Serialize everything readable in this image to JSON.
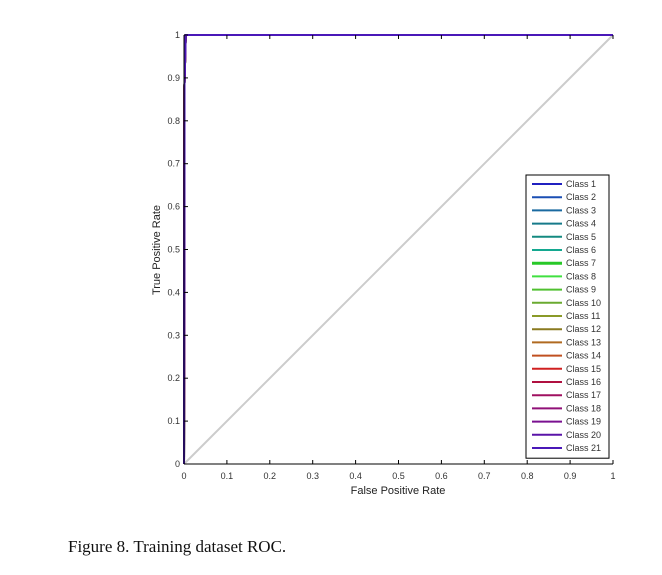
{
  "chart_data": {
    "type": "line",
    "xlabel": "False Positive Rate",
    "ylabel": "True Positive Rate",
    "xlim": [
      0,
      1
    ],
    "ylim": [
      0,
      1
    ],
    "x_ticks": [
      0,
      0.1,
      0.2,
      0.3,
      0.4,
      0.5,
      0.6,
      0.7,
      0.8,
      0.9,
      1
    ],
    "x_tick_labels": [
      "0",
      "0.1",
      "0.2",
      "0.3",
      "0.4",
      "0.5",
      "0.6",
      "0.7",
      "0.8",
      "0.9",
      "1"
    ],
    "y_ticks": [
      0,
      0.1,
      0.2,
      0.3,
      0.4,
      0.5,
      0.6,
      0.7,
      0.8,
      0.9,
      1
    ],
    "y_tick_labels": [
      "0",
      "0.1",
      "0.2",
      "0.3",
      "0.4",
      "0.5",
      "0.6",
      "0.7",
      "0.8",
      "0.9",
      "1"
    ],
    "grid": false,
    "legend_position": "right",
    "reference_line": {
      "x": [
        0,
        1
      ],
      "y": [
        0,
        1
      ],
      "color": "#cccccc"
    },
    "series": [
      {
        "name": "Class 1",
        "color": "#2020c0",
        "x": [
          0,
          0.001,
          0.004,
          1
        ],
        "y": [
          0,
          0.88,
          1,
          1
        ]
      },
      {
        "name": "Class 2",
        "color": "#1a4fb4",
        "x": [
          0,
          0.001,
          0.004,
          1
        ],
        "y": [
          0,
          0.88,
          1,
          1
        ]
      },
      {
        "name": "Class 3",
        "color": "#1a6aa0",
        "x": [
          0,
          0.001,
          0.004,
          1
        ],
        "y": [
          0,
          0.88,
          1,
          1
        ]
      },
      {
        "name": "Class 4",
        "color": "#167a8a",
        "x": [
          0,
          0.001,
          0.004,
          1
        ],
        "y": [
          0,
          0.88,
          1,
          1
        ]
      },
      {
        "name": "Class 5",
        "color": "#148a80",
        "x": [
          0,
          0.001,
          0.004,
          1
        ],
        "y": [
          0,
          0.88,
          1,
          1
        ]
      },
      {
        "name": "Class 6",
        "color": "#14a890",
        "x": [
          0,
          0.001,
          0.004,
          1
        ],
        "y": [
          0,
          0.88,
          1,
          1
        ]
      },
      {
        "name": "Class 7",
        "color": "#28c828",
        "x": [
          0,
          0.001,
          0.004,
          1
        ],
        "y": [
          0,
          0.88,
          1,
          1
        ]
      },
      {
        "name": "Class 8",
        "color": "#40e040",
        "x": [
          0,
          0.001,
          0.004,
          1
        ],
        "y": [
          0,
          0.88,
          1,
          1
        ]
      },
      {
        "name": "Class 9",
        "color": "#50c030",
        "x": [
          0,
          0.001,
          0.004,
          1
        ],
        "y": [
          0,
          0.88,
          1,
          1
        ]
      },
      {
        "name": "Class 10",
        "color": "#6aaa30",
        "x": [
          0,
          0.001,
          0.004,
          1
        ],
        "y": [
          0,
          0.88,
          1,
          1
        ]
      },
      {
        "name": "Class 11",
        "color": "#8a9a28",
        "x": [
          0,
          0.001,
          0.004,
          1
        ],
        "y": [
          0,
          0.88,
          1,
          1
        ]
      },
      {
        "name": "Class 12",
        "color": "#8a7a20",
        "x": [
          0,
          0.001,
          0.004,
          1
        ],
        "y": [
          0,
          0.88,
          1,
          1
        ]
      },
      {
        "name": "Class 13",
        "color": "#b06a20",
        "x": [
          0,
          0.001,
          0.004,
          1
        ],
        "y": [
          0,
          0.88,
          1,
          1
        ]
      },
      {
        "name": "Class 14",
        "color": "#c05020",
        "x": [
          0,
          0.001,
          0.004,
          1
        ],
        "y": [
          0,
          0.88,
          1,
          1
        ]
      },
      {
        "name": "Class 15",
        "color": "#d02020",
        "x": [
          0,
          0.001,
          0.004,
          1
        ],
        "y": [
          0,
          0.88,
          1,
          1
        ]
      },
      {
        "name": "Class 16",
        "color": "#b01040",
        "x": [
          0,
          0.001,
          0.004,
          1
        ],
        "y": [
          0,
          0.88,
          1,
          1
        ]
      },
      {
        "name": "Class 17",
        "color": "#a01060",
        "x": [
          0,
          0.001,
          0.004,
          1
        ],
        "y": [
          0,
          0.88,
          1,
          1
        ]
      },
      {
        "name": "Class 18",
        "color": "#901078",
        "x": [
          0,
          0.001,
          0.004,
          1
        ],
        "y": [
          0,
          0.88,
          1,
          1
        ]
      },
      {
        "name": "Class 19",
        "color": "#7a1090",
        "x": [
          0,
          0.001,
          0.004,
          1
        ],
        "y": [
          0,
          0.88,
          1,
          1
        ]
      },
      {
        "name": "Class 20",
        "color": "#5a14a8",
        "x": [
          0,
          0.001,
          0.004,
          1
        ],
        "y": [
          0,
          0.88,
          1,
          1
        ]
      },
      {
        "name": "Class 21",
        "color": "#4a18b8",
        "x": [
          0,
          0.001,
          0.004,
          1
        ],
        "y": [
          0,
          0.88,
          1,
          1
        ]
      }
    ]
  },
  "caption": "Figure 8. Training dataset ROC."
}
